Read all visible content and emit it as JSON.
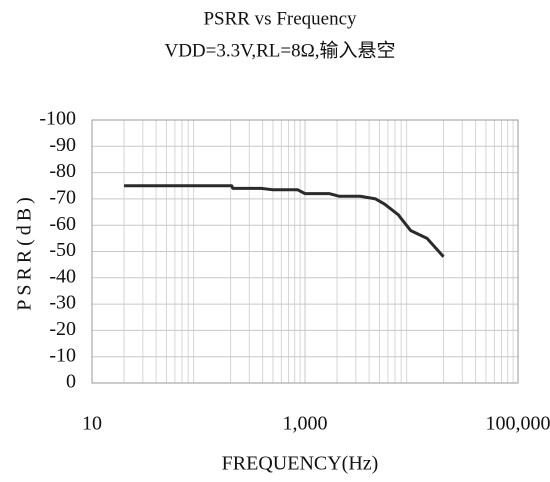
{
  "chart_data": {
    "type": "line",
    "title": "PSRR vs Frequency",
    "subtitle": "VDD=3.3V,RL=8Ω,输入悬空",
    "x_label": "FREQUENCY(Hz)",
    "y_label": "PSRR(dB)",
    "log_x": true,
    "grid": true,
    "xlim": [
      10,
      100000
    ],
    "xticks": [
      10,
      {
        "value": 1000,
        "label": "1,000"
      },
      {
        "value": 100000,
        "label": "100,000"
      }
    ],
    "ylim": [
      0,
      -100
    ],
    "yticks": [
      -100,
      -90,
      -80,
      -70,
      -60,
      -50,
      -40,
      -30,
      -20,
      -10,
      0
    ],
    "series": [
      {
        "name": "PSRR",
        "color": "#2b2b2b",
        "x": [
          20,
          205,
          210,
          390,
          490,
          850,
          1000,
          1700,
          2100,
          3300,
          4600,
          5600,
          7500,
          9800,
          14000,
          20000
        ],
        "values": [
          -75,
          -75,
          -74,
          -74,
          -73.5,
          -73.5,
          -72,
          -72,
          -71,
          -71,
          -70,
          -68,
          -64,
          -58,
          -55,
          -48
        ]
      }
    ]
  }
}
